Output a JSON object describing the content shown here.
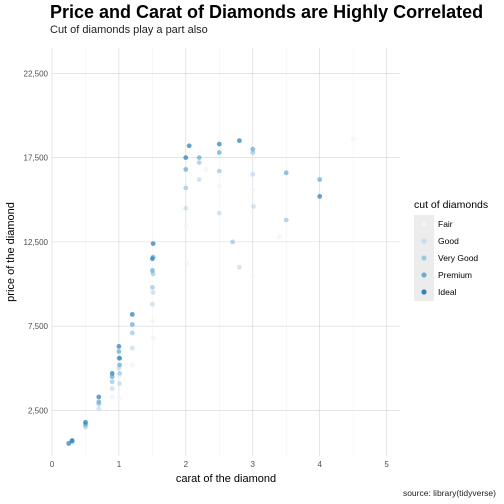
{
  "chart_data": {
    "type": "scatter",
    "title": "Price and Carat of Diamonds are Highly Correlated",
    "subtitle": "Cut of diamonds play a part also",
    "caption": "source: library(tidyverse)",
    "xlabel": "carat of the diamond",
    "ylabel": "price of the diamond",
    "xlim": [
      0,
      5.2
    ],
    "ylim": [
      -200,
      24000
    ],
    "x_ticks": [
      0,
      1,
      2,
      3,
      4,
      5
    ],
    "x_tick_labels": [
      "0",
      "1",
      "2",
      "3",
      "4",
      "5"
    ],
    "y_ticks": [
      2500,
      7500,
      12500,
      17500,
      22500
    ],
    "y_tick_labels": [
      "2,500",
      "7,500",
      "12,500",
      "17,500",
      "22,500"
    ],
    "grid": true,
    "legend": {
      "title": "cut of diamonds",
      "position": "right",
      "entries": [
        "Fair",
        "Good",
        "Very Good",
        "Premium",
        "Ideal"
      ]
    },
    "series": [
      {
        "name": "Fair",
        "color": "#eff3ff",
        "points": [
          [
            0.7,
            2800
          ],
          [
            0.9,
            3300
          ],
          [
            1.0,
            4500
          ],
          [
            1.01,
            3200
          ],
          [
            1.2,
            5200
          ],
          [
            1.5,
            7800
          ],
          [
            1.51,
            6800
          ],
          [
            2.0,
            13500
          ],
          [
            2.01,
            11200
          ],
          [
            2.5,
            15800
          ],
          [
            3.0,
            15600
          ],
          [
            3.4,
            12800
          ],
          [
            4.5,
            18600
          ],
          [
            3.0,
            10500
          ],
          [
            2.3,
            16800
          ]
        ]
      },
      {
        "name": "Good",
        "color": "#c6dbef",
        "points": [
          [
            0.3,
            700
          ],
          [
            0.5,
            1500
          ],
          [
            0.7,
            2600
          ],
          [
            0.9,
            3800
          ],
          [
            1.0,
            5000
          ],
          [
            1.01,
            4100
          ],
          [
            1.2,
            6200
          ],
          [
            1.5,
            8800
          ],
          [
            1.51,
            9500
          ],
          [
            2.0,
            14500
          ],
          [
            2.2,
            16200
          ],
          [
            2.5,
            14200
          ],
          [
            3.0,
            16500
          ],
          [
            3.01,
            14600
          ],
          [
            2.8,
            11000
          ]
        ]
      },
      {
        "name": "Very Good",
        "color": "#9ecae1",
        "points": [
          [
            0.3,
            650
          ],
          [
            0.5,
            1600
          ],
          [
            0.7,
            2900
          ],
          [
            0.9,
            4200
          ],
          [
            1.0,
            5600
          ],
          [
            1.01,
            4700
          ],
          [
            1.2,
            7100
          ],
          [
            1.5,
            9800
          ],
          [
            1.51,
            10600
          ],
          [
            2.0,
            15700
          ],
          [
            2.2,
            17200
          ],
          [
            2.5,
            16700
          ],
          [
            3.0,
            17800
          ],
          [
            3.5,
            13800
          ],
          [
            2.7,
            12500
          ]
        ]
      },
      {
        "name": "Premium",
        "color": "#6baed6",
        "points": [
          [
            0.3,
            720
          ],
          [
            0.5,
            1700
          ],
          [
            0.7,
            3000
          ],
          [
            0.9,
            4500
          ],
          [
            1.0,
            6000
          ],
          [
            1.01,
            5200
          ],
          [
            1.2,
            7600
          ],
          [
            1.5,
            10800
          ],
          [
            1.51,
            11600
          ],
          [
            2.0,
            16800
          ],
          [
            2.2,
            17500
          ],
          [
            2.5,
            17800
          ],
          [
            3.0,
            18000
          ],
          [
            3.5,
            16600
          ],
          [
            4.0,
            16200
          ]
        ]
      },
      {
        "name": "Ideal",
        "color": "#3182bd",
        "points": [
          [
            0.25,
            550
          ],
          [
            0.3,
            700
          ],
          [
            0.5,
            1800
          ],
          [
            0.7,
            3300
          ],
          [
            0.9,
            4700
          ],
          [
            1.0,
            6300
          ],
          [
            1.01,
            5600
          ],
          [
            1.2,
            8200
          ],
          [
            1.5,
            11500
          ],
          [
            1.51,
            12400
          ],
          [
            2.0,
            17500
          ],
          [
            2.05,
            18200
          ],
          [
            2.5,
            18300
          ],
          [
            2.8,
            18500
          ],
          [
            4.0,
            15200
          ]
        ]
      }
    ]
  }
}
